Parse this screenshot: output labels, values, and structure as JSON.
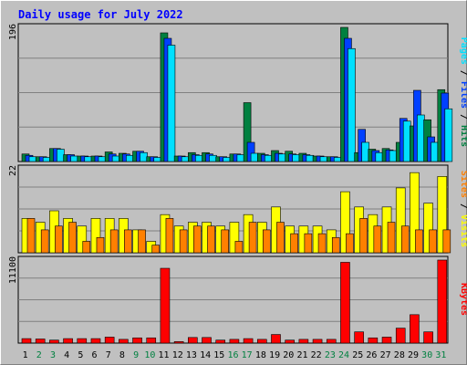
{
  "title": "Daily usage for July 2022",
  "colors": {
    "background": "#c0c0c0",
    "title": "#0000ff",
    "hits": "#008040",
    "files": "#0040ff",
    "pages": "#00e0ff",
    "visits": "#ffff00",
    "sites": "#ff8000",
    "kbytes": "#ff0000",
    "weekend_day": "#008040",
    "weekday": "#000000"
  },
  "chart_data": [
    {
      "type": "bar",
      "ylabel_top": "196",
      "legend": [
        "Pages",
        "Files",
        "Hits"
      ],
      "x": [
        1,
        2,
        3,
        4,
        5,
        6,
        7,
        8,
        9,
        10,
        11,
        12,
        13,
        14,
        15,
        16,
        17,
        18,
        19,
        20,
        21,
        22,
        23,
        24,
        25,
        26,
        27,
        28,
        29,
        30,
        31
      ],
      "weekend_days": [
        2,
        3,
        9,
        10,
        16,
        17,
        23,
        24,
        30,
        31
      ],
      "ylim": [
        0,
        196
      ],
      "series": [
        {
          "name": "Hits",
          "values": [
            11,
            7,
            19,
            10,
            8,
            8,
            14,
            12,
            15,
            7,
            188,
            8,
            13,
            13,
            7,
            11,
            86,
            12,
            16,
            15,
            12,
            8,
            7,
            196,
            13,
            18,
            19,
            28,
            52,
            61,
            105
          ]
        },
        {
          "name": "Files",
          "values": [
            9,
            7,
            19,
            10,
            8,
            8,
            11,
            11,
            15,
            7,
            180,
            8,
            10,
            11,
            7,
            11,
            28,
            10,
            12,
            11,
            10,
            8,
            7,
            180,
            47,
            16,
            17,
            63,
            104,
            36,
            100
          ]
        },
        {
          "name": "Pages",
          "values": [
            7,
            6,
            18,
            8,
            7,
            7,
            8,
            9,
            13,
            6,
            170,
            7,
            9,
            9,
            6,
            10,
            12,
            9,
            11,
            10,
            9,
            7,
            6,
            165,
            28,
            13,
            16,
            59,
            68,
            28,
            77
          ]
        }
      ]
    },
    {
      "type": "bar",
      "ylabel_top": "22",
      "legend": [
        "Sites",
        "Visits"
      ],
      "x": [
        1,
        2,
        3,
        4,
        5,
        6,
        7,
        8,
        9,
        10,
        11,
        12,
        13,
        14,
        15,
        16,
        17,
        18,
        19,
        20,
        21,
        22,
        23,
        24,
        25,
        26,
        27,
        28,
        29,
        30,
        31
      ],
      "weekend_days": [
        2,
        3,
        9,
        10,
        16,
        17,
        23,
        24,
        30,
        31
      ],
      "ylim": [
        0,
        22
      ],
      "series": [
        {
          "name": "Visits",
          "values": [
            9,
            8,
            11,
            9,
            7,
            9,
            9,
            9,
            6,
            3,
            10,
            7,
            8,
            8,
            7,
            8,
            10,
            8,
            12,
            7,
            7,
            7,
            6,
            16,
            12,
            10,
            12,
            17,
            21,
            13,
            20
          ]
        },
        {
          "name": "Sites",
          "values": [
            9,
            6,
            7,
            8,
            3,
            4,
            6,
            6,
            6,
            2,
            9,
            6,
            7,
            7,
            6,
            3,
            8,
            6,
            8,
            5,
            5,
            5,
            4,
            5,
            9,
            7,
            8,
            7,
            6,
            6,
            6
          ]
        }
      ]
    },
    {
      "type": "bar",
      "ylabel_top": "11100",
      "legend": [
        "KBytes"
      ],
      "x": [
        1,
        2,
        3,
        4,
        5,
        6,
        7,
        8,
        9,
        10,
        11,
        12,
        13,
        14,
        15,
        16,
        17,
        18,
        19,
        20,
        21,
        22,
        23,
        24,
        25,
        26,
        27,
        28,
        29,
        30,
        31
      ],
      "weekend_days": [
        2,
        3,
        9,
        10,
        16,
        17,
        23,
        24,
        30,
        31
      ],
      "ylim": [
        0,
        11100
      ],
      "series": [
        {
          "name": "KBytes",
          "values": [
            600,
            550,
            400,
            600,
            600,
            600,
            800,
            500,
            700,
            700,
            10000,
            200,
            750,
            750,
            400,
            500,
            600,
            500,
            1150,
            400,
            500,
            500,
            500,
            10800,
            1500,
            700,
            800,
            2000,
            3800,
            1500,
            11100
          ]
        }
      ]
    }
  ]
}
